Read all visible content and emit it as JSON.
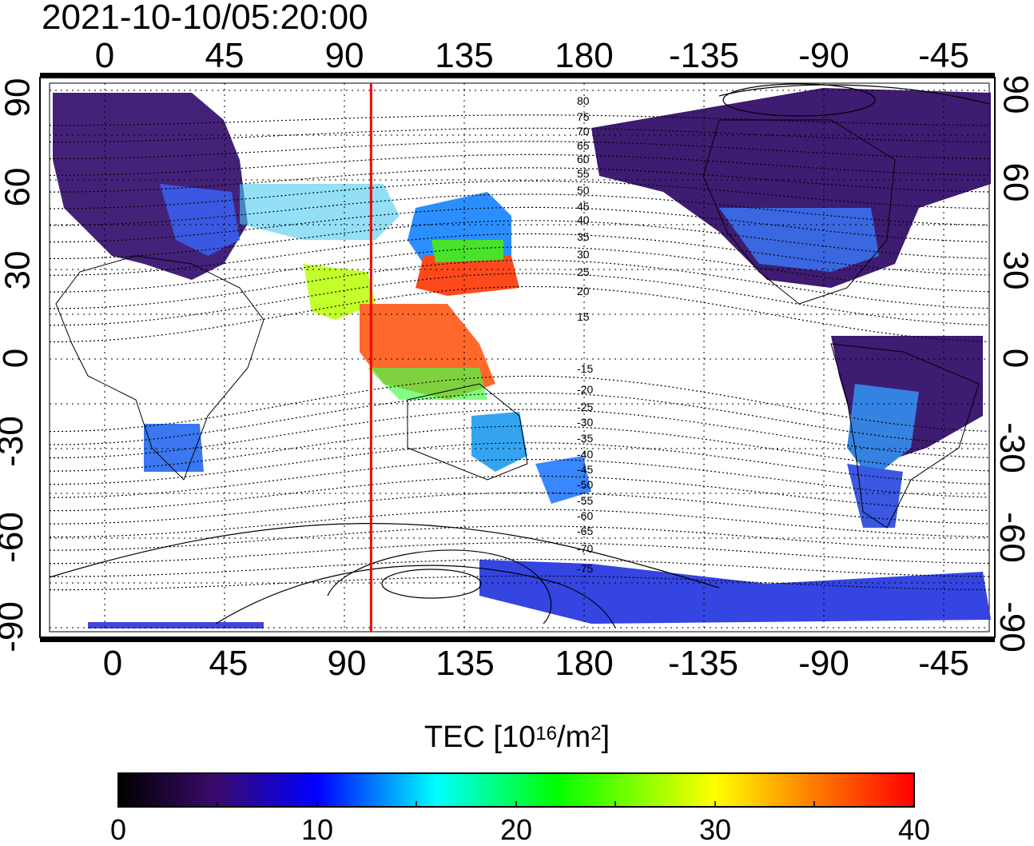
{
  "timestamp": "2021-10-10/05:20:00",
  "x_ticks": [
    "0",
    "45",
    "90",
    "135",
    "180",
    "-135",
    "-90",
    "-45"
  ],
  "y_ticks": [
    "90",
    "60",
    "30",
    "0",
    "-30",
    "-60",
    "-90"
  ],
  "colorbar": {
    "title_prefix": "TEC  [10",
    "title_sup1": "16",
    "title_mid": "/m",
    "title_sup2": "2",
    "title_suffix": "]",
    "ticks": [
      "0",
      "10",
      "20",
      "30",
      "40"
    ],
    "range": [
      0,
      40
    ],
    "colors": [
      "#000000",
      "#3a0a6a",
      "#0000ff",
      "#00ffff",
      "#00ff00",
      "#ffff00",
      "#ff8000",
      "#ff0000"
    ]
  },
  "terminator_longitude": 100,
  "terminator_color": "#ff0000",
  "contour_labels": [
    "80",
    "75",
    "70",
    "65",
    "60",
    "55",
    "50",
    "45",
    "40",
    "35",
    "30",
    "25",
    "20",
    "15",
    "-15",
    "-20",
    "-25",
    "-30",
    "-35",
    "-40",
    "-45",
    "-50",
    "-55",
    "-60",
    "-65",
    "-70",
    "-75"
  ]
}
